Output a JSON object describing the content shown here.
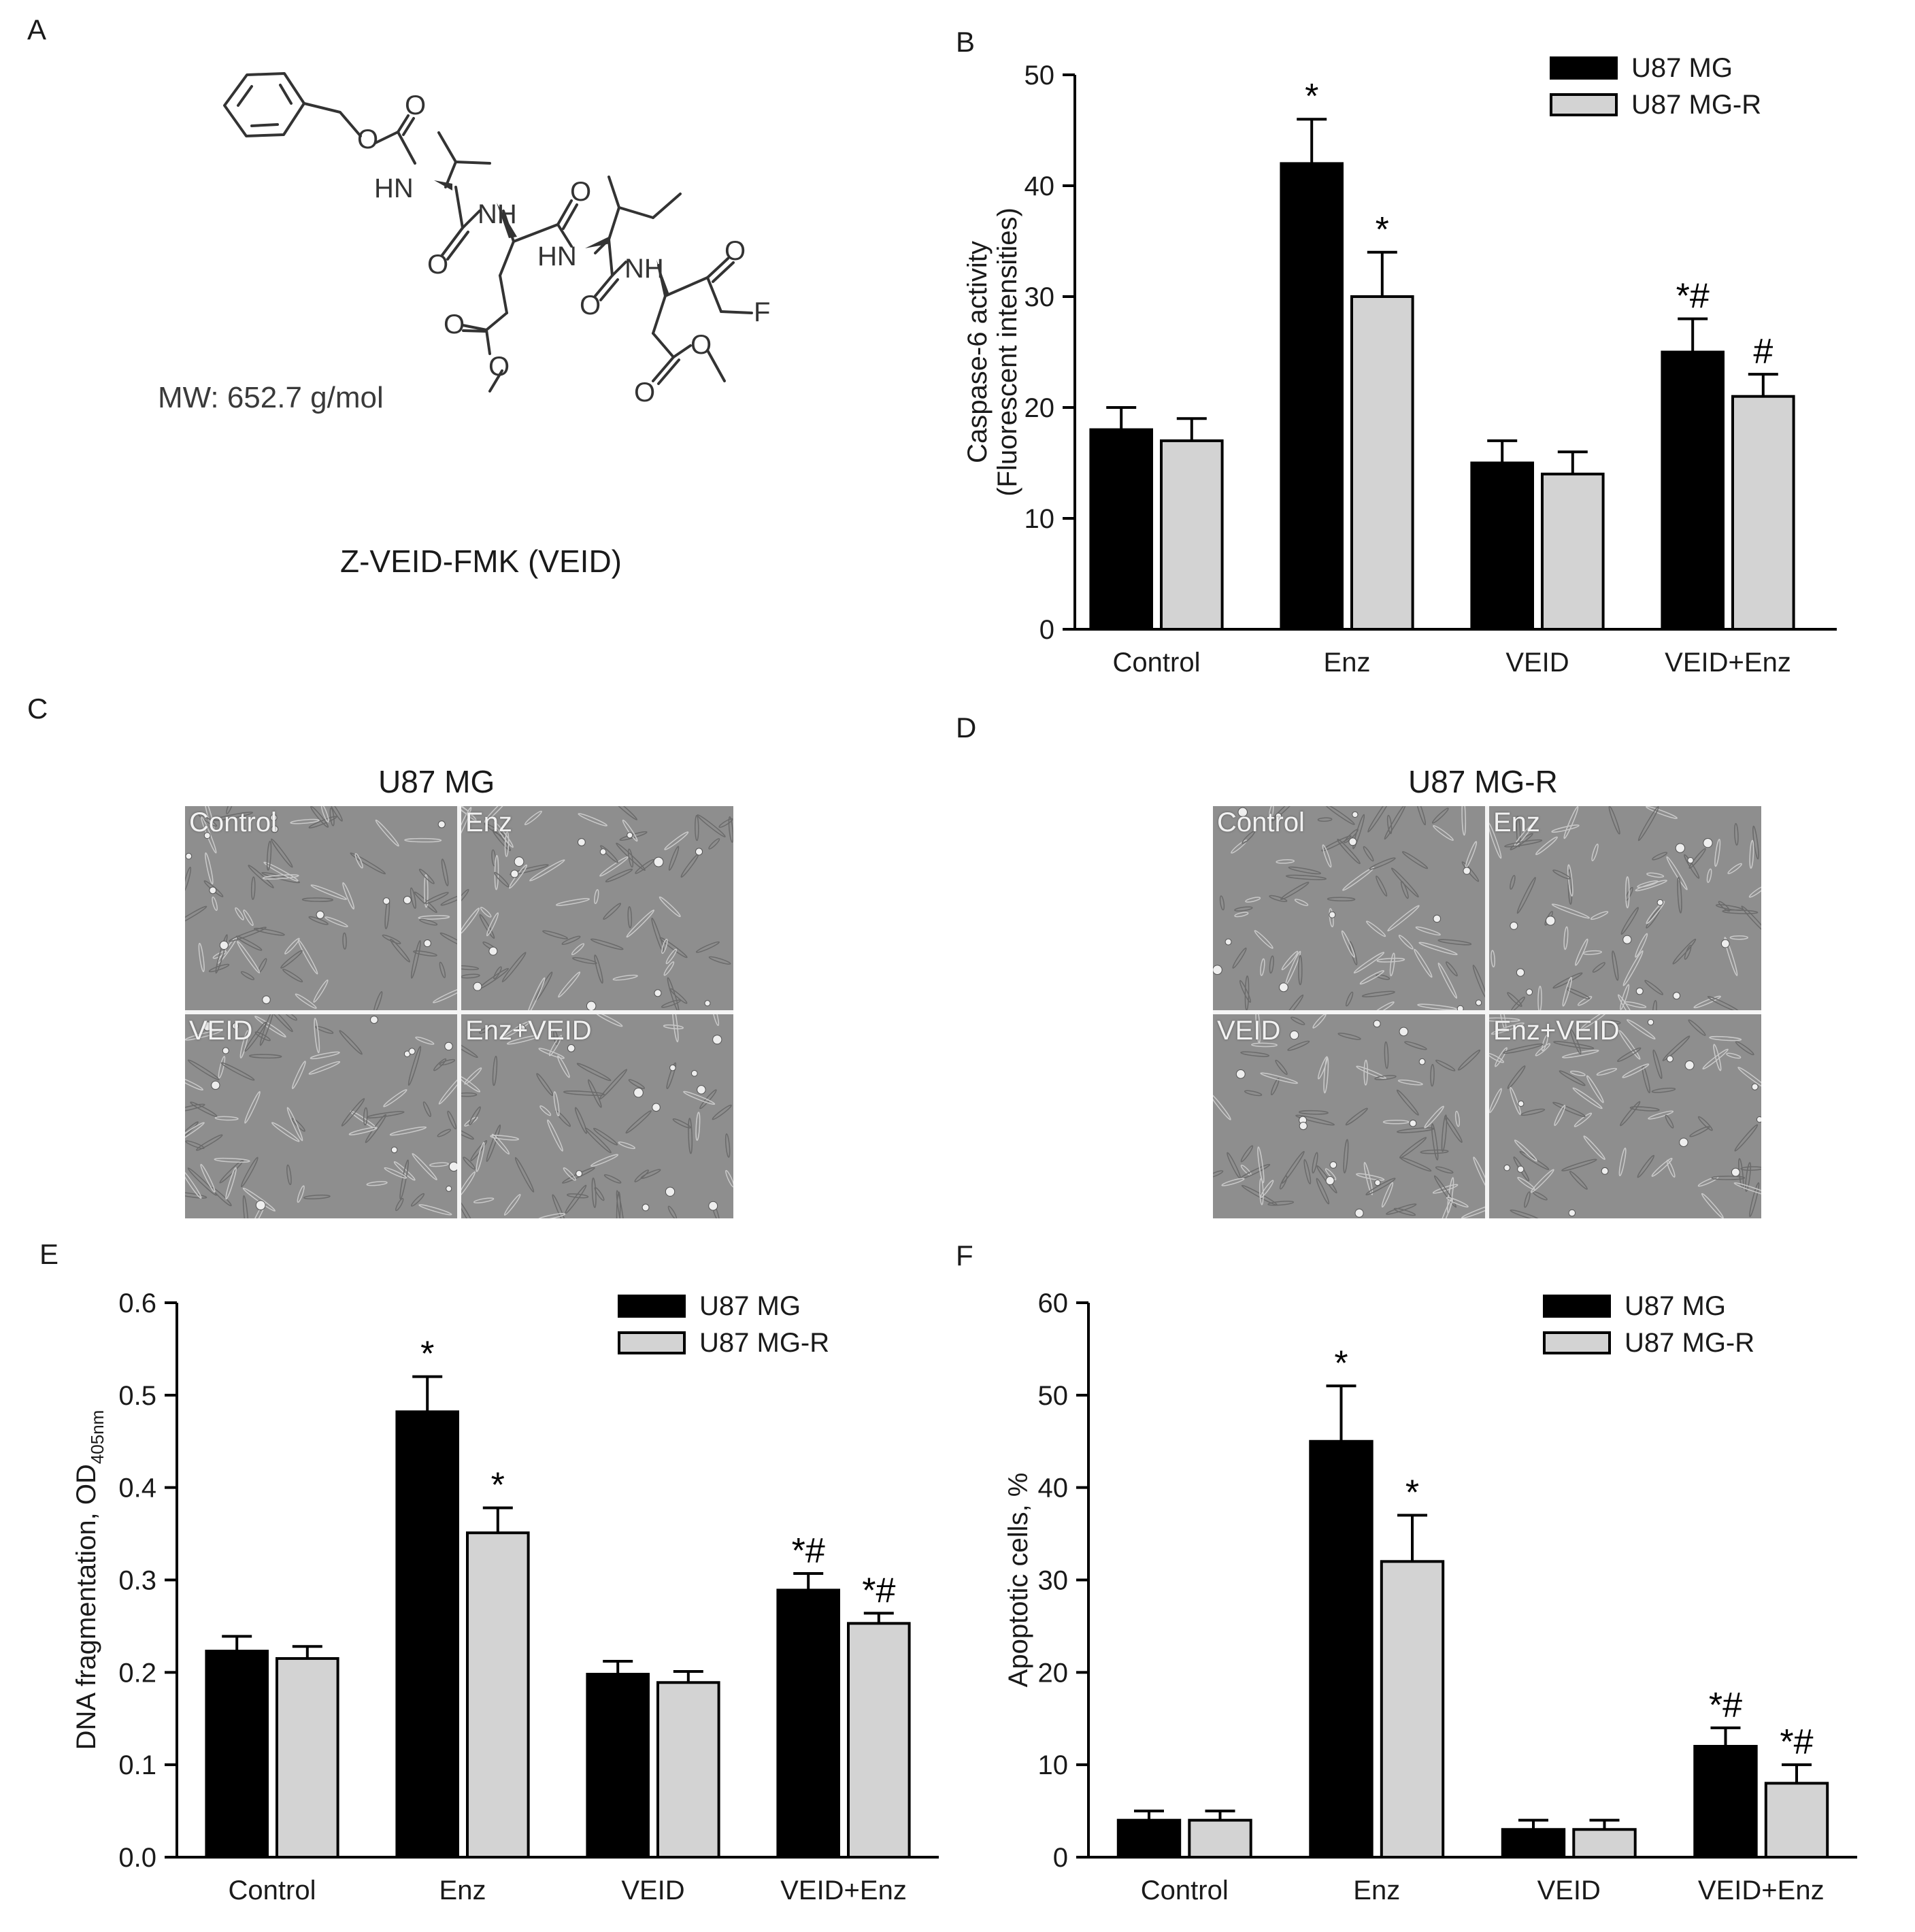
{
  "panels": {
    "A": {
      "letter": "A",
      "mw": "MW: 652.7 g/mol",
      "compound": "Z-VEID-FMK (VEID)",
      "atoms": [
        "O",
        "O",
        "HN",
        "NH",
        "O",
        "O",
        "HN",
        "O",
        "NH",
        "O",
        "O",
        "O",
        "F",
        "O",
        "O"
      ]
    },
    "B": {
      "letter": "B"
    },
    "C": {
      "letter": "C",
      "title": "U87 MG",
      "cells": [
        "Control",
        "Enz",
        "VEID",
        "Enz+VEID"
      ]
    },
    "D": {
      "letter": "D",
      "title": "U87 MG-R",
      "cells": [
        "Control",
        "Enz",
        "VEID",
        "Enz+VEID"
      ]
    },
    "E": {
      "letter": "E"
    },
    "F": {
      "letter": "F"
    }
  },
  "colors": {
    "u87": "#000000",
    "u87r": "#d3d3d3",
    "micro_bg": "#8e8e8e"
  },
  "chart_data": [
    {
      "id": "B",
      "type": "bar",
      "categories": [
        "Control",
        "Enz",
        "VEID",
        "VEID+Enz"
      ],
      "ylabel_lines": [
        "Caspase-6 activity",
        "(Fluorescent intensities)"
      ],
      "ylim": [
        0,
        50
      ],
      "yticks": [
        "0",
        "10",
        "20",
        "30",
        "40",
        "50"
      ],
      "tick_values": [
        0,
        10,
        20,
        30,
        40,
        50
      ],
      "legend_position": "top-right",
      "series": [
        {
          "name": "U87 MG",
          "color": "#000000",
          "values": [
            18,
            42,
            15,
            25
          ],
          "errors": [
            2,
            4,
            2,
            3
          ],
          "annotations": [
            "",
            "*",
            "",
            "*#"
          ]
        },
        {
          "name": "U87 MG-R",
          "color": "#d3d3d3",
          "values": [
            17,
            30,
            14,
            21
          ],
          "errors": [
            2,
            4,
            2,
            2
          ],
          "annotations": [
            "",
            "*",
            "",
            "#"
          ]
        }
      ]
    },
    {
      "id": "E",
      "type": "bar",
      "categories": [
        "Control",
        "Enz",
        "VEID",
        "VEID+Enz"
      ],
      "ylabel": "DNA fragmentation, OD",
      "ylabel_sub": "405nm",
      "ylim": [
        0,
        0.6
      ],
      "yticks": [
        "0.0",
        "0.1",
        "0.2",
        "0.3",
        "0.4",
        "0.5",
        "0.6"
      ],
      "tick_values": [
        0,
        0.1,
        0.2,
        0.3,
        0.4,
        0.5,
        0.6
      ],
      "legend_position": "top-right",
      "series": [
        {
          "name": "U87 MG",
          "color": "#000000",
          "values": [
            0.223,
            0.482,
            0.198,
            0.289
          ],
          "errors": [
            0.016,
            0.038,
            0.014,
            0.018
          ],
          "annotations": [
            "",
            "*",
            "",
            "*#"
          ]
        },
        {
          "name": "U87 MG-R",
          "color": "#d3d3d3",
          "values": [
            0.215,
            0.351,
            0.189,
            0.253
          ],
          "errors": [
            0.013,
            0.027,
            0.012,
            0.011
          ],
          "annotations": [
            "",
            "*",
            "",
            "*#"
          ]
        }
      ]
    },
    {
      "id": "F",
      "type": "bar",
      "categories": [
        "Control",
        "Enz",
        "VEID",
        "VEID+Enz"
      ],
      "ylabel": "Apoptotic cells, %",
      "ylim": [
        0,
        60
      ],
      "yticks": [
        "0",
        "10",
        "20",
        "30",
        "40",
        "50",
        "60"
      ],
      "tick_values": [
        0,
        10,
        20,
        30,
        40,
        50,
        60
      ],
      "legend_position": "top-right",
      "series": [
        {
          "name": "U87 MG",
          "color": "#000000",
          "values": [
            4,
            45,
            3,
            12
          ],
          "errors": [
            1,
            6,
            1,
            2
          ],
          "annotations": [
            "",
            "*",
            "",
            "*#"
          ]
        },
        {
          "name": "U87 MG-R",
          "color": "#d3d3d3",
          "values": [
            4,
            32,
            3,
            8
          ],
          "errors": [
            1,
            5,
            1,
            2
          ],
          "annotations": [
            "",
            "*",
            "",
            "*#"
          ]
        }
      ]
    }
  ]
}
